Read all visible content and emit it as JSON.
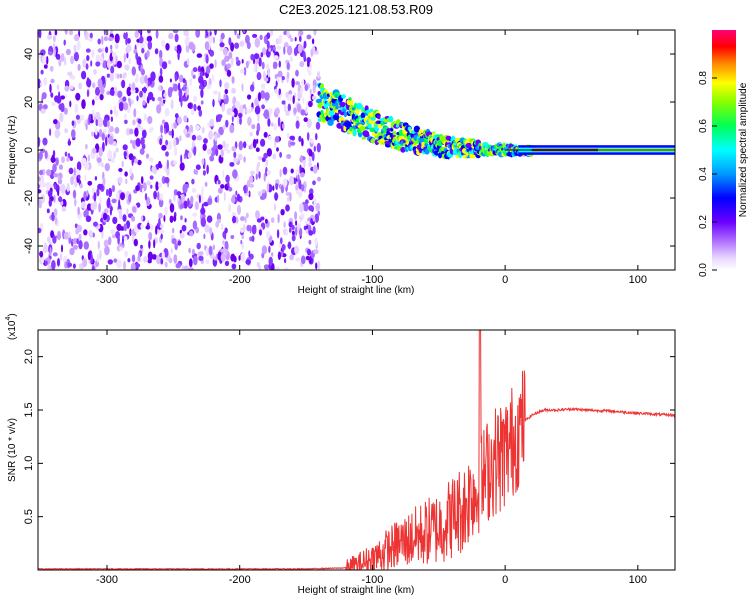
{
  "title": "C2E3.2025.121.08.53.R09",
  "chart_data": [
    {
      "type": "heatmap",
      "xlabel": "Height of straight line (km)",
      "ylabel": "Frequency (Hz)",
      "xlim": [
        -352,
        128
      ],
      "ylim": [
        -50,
        50
      ],
      "xticks": [
        -300,
        -200,
        -100,
        0,
        100
      ],
      "xtick_labels": [
        "-300",
        "-200",
        "-100",
        "0",
        "100"
      ],
      "yticks": [
        -40,
        -20,
        0,
        20,
        40
      ],
      "ytick_labels": [
        "-40",
        "-20",
        "0",
        "20",
        "40"
      ],
      "noise_region_x": [
        -352,
        -140
      ],
      "signal_track": [
        {
          "x": -140,
          "y": 20
        },
        {
          "x": -120,
          "y": 15
        },
        {
          "x": -100,
          "y": 10
        },
        {
          "x": -80,
          "y": 6
        },
        {
          "x": -60,
          "y": 3
        },
        {
          "x": -40,
          "y": 1
        },
        {
          "x": -20,
          "y": 0.5
        },
        {
          "x": 0,
          "y": 0
        },
        {
          "x": 50,
          "y": 0
        },
        {
          "x": 128,
          "y": 0
        }
      ],
      "colorbar": {
        "label": "Normalized spectral amplitude",
        "range": [
          0,
          1
        ],
        "ticks": [
          0.0,
          0.2,
          0.4,
          0.6,
          0.8
        ],
        "tick_labels": [
          "0.0",
          "0.2",
          "0.4",
          "0.6",
          "0.8"
        ]
      },
      "grid": false
    },
    {
      "type": "line",
      "xlabel": "Height of straight line (km)",
      "ylabel": "SNR (10 * v/v)",
      "scale_label_base": "(x10",
      "scale_label_exp": "4",
      "scale_label_close": ")",
      "xlim": [
        -352,
        128
      ],
      "ylim": [
        0,
        2.25
      ],
      "xticks": [
        -300,
        -200,
        -100,
        0,
        100
      ],
      "xtick_labels": [
        "-300",
        "-200",
        "-100",
        "0",
        "100"
      ],
      "yticks": [
        0.5,
        1.0,
        1.5,
        2.0
      ],
      "ytick_labels": [
        "0.5",
        "1.0",
        "1.5",
        "2.0"
      ],
      "series": [
        {
          "color": "#ee3333",
          "x": [
            -352,
            -300,
            -200,
            -150,
            -120,
            -110,
            -100,
            -90,
            -80,
            -70,
            -60,
            -50,
            -40,
            -30,
            -25,
            -20,
            -18,
            -15,
            -10,
            -5,
            0,
            5,
            10,
            15,
            20,
            25,
            30,
            40,
            50,
            60,
            80,
            100,
            128
          ],
          "y": [
            0.01,
            0.01,
            0.01,
            0.01,
            0.02,
            0.05,
            0.1,
            0.18,
            0.25,
            0.3,
            0.35,
            0.4,
            0.5,
            0.6,
            0.75,
            0.7,
            0.8,
            0.9,
            1.0,
            1.05,
            1.1,
            1.2,
            1.3,
            1.4,
            1.45,
            1.48,
            1.5,
            1.5,
            1.51,
            1.5,
            1.49,
            1.47,
            1.45
          ]
        }
      ],
      "grid": false
    }
  ]
}
